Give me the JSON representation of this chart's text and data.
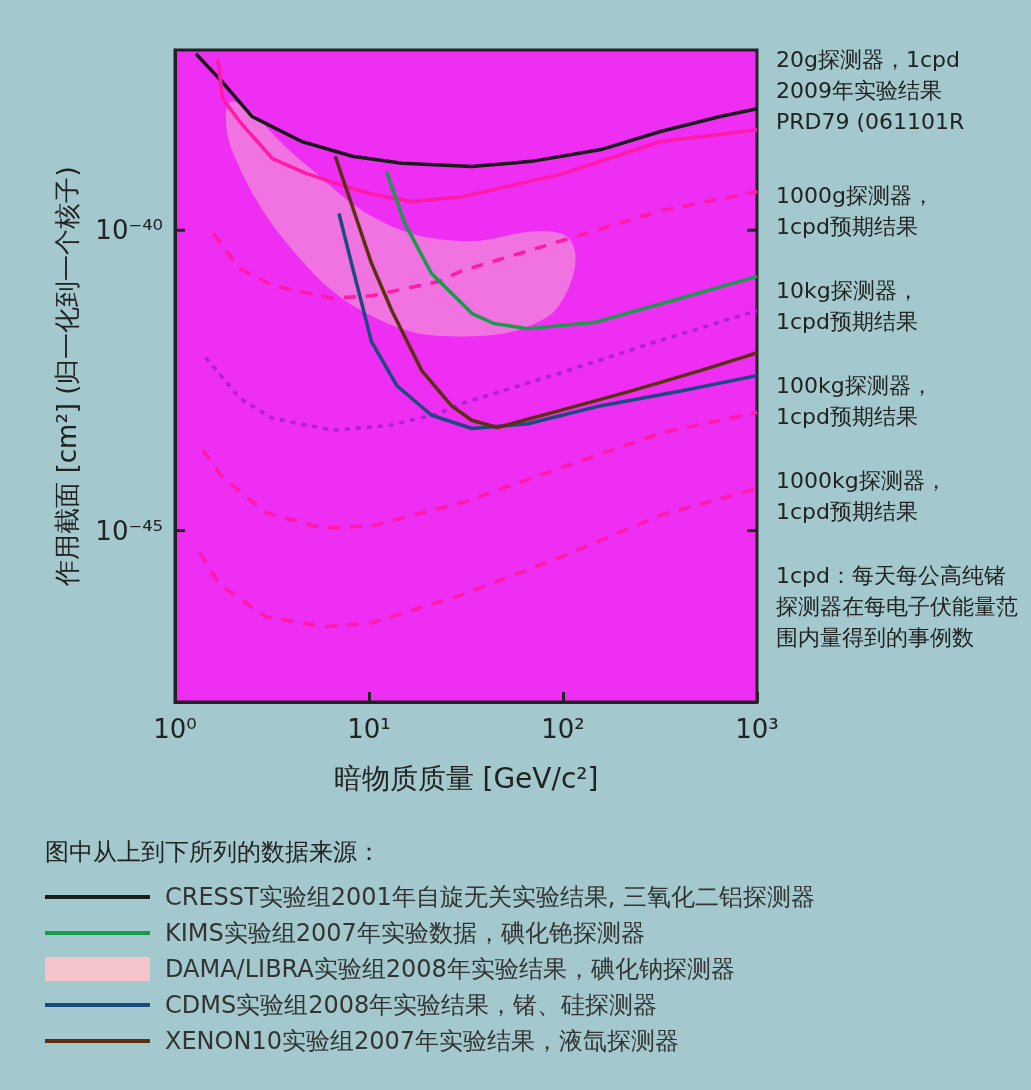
{
  "chart_data": {
    "type": "line",
    "xlabel": "暗物质质量 [GeV/c²]",
    "ylabel": "作用截面 [cm²] (归一化到一个核子)",
    "log": "xy",
    "xlim": [
      1,
      1000
    ],
    "xticks": [
      {
        "value": 1,
        "label": "10⁰"
      },
      {
        "value": 10,
        "label": "10¹"
      },
      {
        "value": 100,
        "label": "10²"
      },
      {
        "value": 1000,
        "label": "10³"
      }
    ],
    "ylim": [
      1.4e-48,
      1e-37
    ],
    "yticks": [
      {
        "value": 1e-45,
        "label": "10⁻⁴⁵"
      },
      {
        "value": 1e-40,
        "label": "10⁻⁴⁰"
      }
    ],
    "grid": false,
    "marker": "none",
    "legend": "bottom",
    "legend_title": "图中从上到下所列的数据来源：",
    "series": [
      {
        "name": "CRESST实验组2001年自旋无关实验结果, 三氧化二铝探测器",
        "color": "#1a1a1a",
        "x": [
          1.28,
          1.76,
          2.5,
          4.5,
          8.2,
          14.8,
          34,
          69,
          157,
          318,
          646,
          1000
        ],
        "values": [
          8.7e-38,
          2.9e-38,
          7.8e-39,
          3e-39,
          1.7e-39,
          1.3e-39,
          1.15e-39,
          1.4e-39,
          2.2e-39,
          4.4e-39,
          7.8e-39,
          1.05e-38
        ]
      },
      {
        "color": "#ff1aa8",
        "line_style": "solid",
        "x": [
          1.66,
          1.76,
          2.15,
          3.18,
          4.7,
          7.0,
          10.3,
          16.6,
          30,
          97,
          318,
          1000
        ],
        "values": [
          7.1e-38,
          1.55e-38,
          6.5e-39,
          1.55e-39,
          8.9e-40,
          5.8e-40,
          4e-40,
          3e-40,
          3.6e-40,
          8.5e-40,
          3e-39,
          4.7e-39
        ]
      },
      {
        "color": "#ff1aa8",
        "line_style": "dashed",
        "x": [
          1.57,
          2.15,
          3.18,
          6.5,
          10.3,
          22.9,
          30,
          97,
          318,
          1000
        ],
        "values": [
          8.9e-41,
          2.3e-41,
          1.2e-41,
          7.4e-42,
          8.1e-42,
          1.4e-41,
          2.1e-41,
          6.6e-41,
          2.1e-40,
          4.4e-40
        ]
      },
      {
        "name": "KIMS实验组2007年实验数据，碘化铯探测器",
        "color": "#1a9a4a",
        "x": [
          12.3,
          15.3,
          21,
          34,
          44,
          66,
          144,
          318,
          1000
        ],
        "values": [
          9.5e-40,
          1.3e-40,
          1.9e-41,
          4.1e-42,
          2.8e-42,
          2.3e-42,
          2.9e-42,
          5.9e-42,
          1.7e-41
        ]
      },
      {
        "name": "DAMA/LIBRA实验组2008年实验结果，碘化钠探测器",
        "type": "area",
        "color": "#f5c5cb",
        "x": [
          1.98,
          4.5,
          11.6,
          30,
          77,
          110
        ],
        "values": [
          null,
          null,
          null,
          null,
          null,
          null
        ],
        "lower": [
          2e-39,
          3.1e-41,
          3.1e-42,
          1.7e-42,
          3.1e-42,
          1.4e-41
        ],
        "upper": [
          1.4e-38,
          1.4e-39,
          1.4e-40,
          6.6e-41,
          9.6e-41,
          6.6e-41
        ]
      },
      {
        "color": "#b020d0",
        "line_style": "dotted",
        "x": [
          1.44,
          2.15,
          3.18,
          6.5,
          12.7,
          22.9,
          30,
          97,
          293,
          1000
        ],
        "values": [
          7.6e-43,
          1.6e-43,
          7.4e-44,
          4.7e-44,
          5.6e-44,
          8.9e-44,
          1.3e-43,
          4.2e-43,
          1.35e-42,
          4.6e-42
        ]
      },
      {
        "name": "CDMS实验组2008年实验结果，锗、硅探测器",
        "color": "#1a4a80",
        "x": [
          7.0,
          8.2,
          10.3,
          13.9,
          21,
          34,
          66,
          157,
          405,
          1000
        ],
        "values": [
          1.9e-40,
          2.5e-41,
          1.4e-42,
          2.6e-43,
          8.3e-44,
          5e-44,
          6e-44,
          1.2e-43,
          2.1e-43,
          3.8e-43
        ]
      },
      {
        "name": "XENON10实验组2007年实验结果，液氙探测器",
        "color": "#5a3010",
        "x": [
          6.7,
          8.2,
          10.3,
          13.1,
          18.7,
          26.6,
          34,
          46,
          97,
          223,
          510,
          1000
        ],
        "values": [
          1.7e-39,
          2.5e-40,
          2.8e-41,
          4.6e-42,
          4.6e-43,
          1.2e-43,
          6.8e-44,
          5.2e-44,
          1e-43,
          2.1e-43,
          4.6e-43,
          9.1e-43
        ]
      },
      {
        "color": "#ff1aa8",
        "line_style": "dashed",
        "x": [
          1.39,
          1.76,
          2.93,
          5.75,
          10.3,
          30,
          97,
          318,
          1000
        ],
        "values": [
          2.2e-44,
          7.8e-45,
          2e-45,
          1.1e-45,
          1.2e-45,
          2.9e-45,
          1.1e-44,
          4.2e-44,
          9.3e-44
        ]
      },
      {
        "color": "#ff1aa8",
        "line_style": "dashed",
        "x": [
          1.34,
          1.7,
          2.93,
          5.95,
          10.3,
          30,
          97,
          318,
          1000
        ],
        "values": [
          4.3e-46,
          1.26e-46,
          3.7e-47,
          2.5e-47,
          2.9e-47,
          8.5e-47,
          3.6e-46,
          1.8e-45,
          5e-45
        ]
      }
    ],
    "annotations": [
      "20g探测器，1cpd\n2009年实验结果\nPRD79 (061101R",
      "1000g探测器，\n1cpd预期结果",
      "10kg探测器，\n1cpd预期结果",
      "100kg探测器，\n1cpd预期结果",
      "1000kg探测器，\n1cpd预期结果",
      "1cpd：每天每公高纯锗探测器在每电子伏能量范围内量得到的事例数"
    ]
  }
}
